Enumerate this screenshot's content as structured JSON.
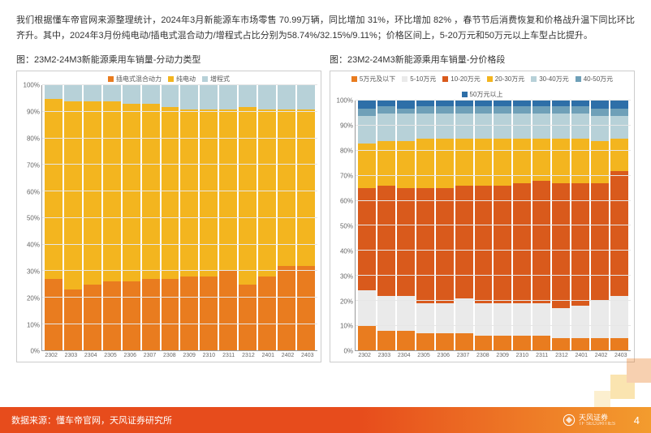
{
  "intro_text": "我们根据懂车帝官网来源整理统计，2024年3月新能源车市场零售 70.99万辆，同比增加 31%，环比增加 82% ，春节节后消费恢复和价格战升温下同比环比齐升。其中，2024年3月份纯电动/插电式混合动力/增程式占比分别为58.74%/32.15%/9.11%；价格区间上，5-20万元和50万元以上车型占比提升。",
  "chart1": {
    "title": "图：23M2-24M3新能源乘用车销量-分动力类型",
    "type": "stacked-bar",
    "categories": [
      "2302",
      "2303",
      "2304",
      "2305",
      "2306",
      "2307",
      "2308",
      "2309",
      "2310",
      "2311",
      "2312",
      "2401",
      "2402",
      "2403"
    ],
    "series": [
      {
        "name": "插电式混合动力",
        "color": "#e97c1f",
        "values": [
          27,
          23,
          25,
          26,
          26,
          27,
          27,
          28,
          28,
          30,
          25,
          28,
          32,
          32
        ]
      },
      {
        "name": "纯电动",
        "color": "#f3b51f",
        "values": [
          68,
          71,
          69,
          68,
          67,
          66,
          65,
          63,
          63,
          61,
          67,
          63,
          59,
          59
        ]
      },
      {
        "name": "增程式",
        "color": "#b7d1d8",
        "values": [
          5,
          6,
          6,
          6,
          7,
          7,
          8,
          9,
          9,
          9,
          8,
          9,
          9,
          9
        ]
      }
    ],
    "ylim": [
      0,
      100
    ],
    "ytick_step": 10,
    "axis_fontsize": 8,
    "grid_color": "#e6e6e6",
    "background_color": "#ffffff"
  },
  "chart2": {
    "title": "图：23M2-24M3新能源乘用车销量-分价格段",
    "type": "stacked-bar",
    "categories": [
      "2302",
      "2303",
      "2304",
      "2305",
      "2306",
      "2307",
      "2308",
      "2309",
      "2310",
      "2311",
      "2312",
      "2401",
      "2402",
      "2403"
    ],
    "series": [
      {
        "name": "5万元及以下",
        "color": "#e97c1f",
        "values": [
          10,
          8,
          8,
          7,
          7,
          7,
          6,
          6,
          6,
          6,
          5,
          5,
          5,
          5
        ]
      },
      {
        "name": "5-10万元",
        "color": "#eaeaea",
        "values": [
          14,
          14,
          14,
          12,
          12,
          14,
          13,
          13,
          13,
          13,
          12,
          13,
          15,
          17
        ]
      },
      {
        "name": "10-20万元",
        "color": "#d95a1c",
        "values": [
          41,
          44,
          43,
          46,
          46,
          45,
          47,
          47,
          48,
          49,
          50,
          49,
          47,
          50
        ]
      },
      {
        "name": "20-30万元",
        "color": "#f3b51f",
        "values": [
          18,
          18,
          19,
          20,
          20,
          19,
          19,
          19,
          18,
          17,
          18,
          18,
          17,
          13
        ]
      },
      {
        "name": "30-40万元",
        "color": "#b7d1d8",
        "values": [
          11,
          11,
          11,
          10,
          10,
          10,
          10,
          10,
          10,
          10,
          10,
          10,
          10,
          9
        ]
      },
      {
        "name": "40-50万元",
        "color": "#6fa0b8",
        "values": [
          3,
          3,
          2,
          3,
          3,
          3,
          3,
          3,
          3,
          3,
          3,
          3,
          3,
          3
        ]
      },
      {
        "name": "50万元以上",
        "color": "#2e6fa8",
        "values": [
          3,
          2,
          3,
          2,
          2,
          2,
          2,
          2,
          2,
          2,
          2,
          2,
          3,
          3
        ]
      }
    ],
    "ylim": [
      0,
      100
    ],
    "ytick_step": 10,
    "axis_fontsize": 8,
    "grid_color": "#e6e6e6",
    "background_color": "#ffffff"
  },
  "footer": {
    "source_label": "数据来源：懂车帝官网，天风证券研究所",
    "page": "4",
    "brand": "天风证券",
    "brand_en": "TF SECURITIES"
  },
  "colors": {
    "footer_start": "#e74c1c",
    "footer_end": "#f39c2e",
    "text": "#333333"
  }
}
